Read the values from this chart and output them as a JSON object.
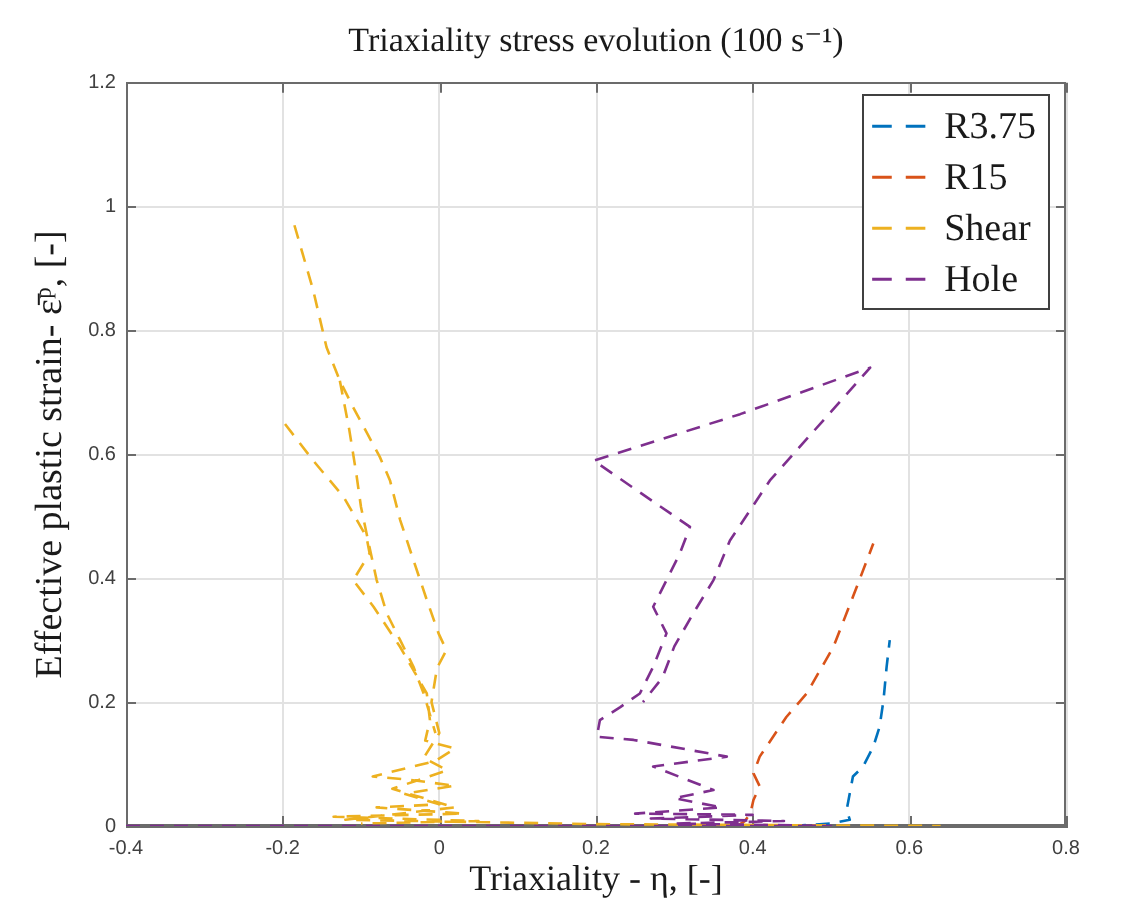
{
  "chart_data": {
    "type": "line",
    "title": "Triaxiality stress evolution (100 s⁻¹)",
    "xlabel": "Triaxiality - η, [-]",
    "ylabel": "Effective plastic strain- ε̄ᵖ, [-]",
    "xlim": [
      -0.4,
      0.8
    ],
    "ylim": [
      0,
      1.2
    ],
    "xticks": [
      -0.4,
      -0.2,
      0,
      0.2,
      0.4,
      0.6,
      0.8
    ],
    "yticks": [
      0,
      0.2,
      0.4,
      0.6,
      0.8,
      1,
      1.2
    ],
    "grid": true,
    "legend": "top right",
    "line_style": "dashed",
    "series": [
      {
        "name": "R3.75",
        "color": "#0072bd",
        "x": [
          0.45,
          0.5,
          0.524,
          0.52,
          0.524,
          0.528,
          0.541,
          0.554,
          0.562,
          0.567,
          0.571,
          0.575
        ],
        "values": [
          0,
          0.004,
          0.01,
          0.026,
          0.053,
          0.08,
          0.096,
          0.128,
          0.16,
          0.203,
          0.257,
          0.3
        ]
      },
      {
        "name": "R15",
        "color": "#d95319",
        "x": [
          0.38,
          0.39,
          0.397,
          0.401,
          0.409,
          0.401,
          0.409,
          0.443,
          0.469,
          0.503,
          0.528,
          0.554
        ],
        "values": [
          0,
          0.008,
          0.02,
          0.042,
          0.064,
          0.085,
          0.112,
          0.176,
          0.214,
          0.289,
          0.37,
          0.456
        ]
      },
      {
        "name": "Shear",
        "color": "#edb120",
        "x": [
          -0.197,
          -0.161,
          -0.122,
          -0.093,
          -0.089,
          -0.11,
          -0.084,
          -0.05,
          -0.016,
          -0.012,
          -0.018,
          0.02,
          -0.005,
          -0.085,
          -0.04,
          0.02,
          -0.045,
          0,
          -0.08,
          0.03,
          -0.135,
          0.05,
          -0.1,
          null,
          -0.185,
          -0.161,
          -0.144,
          -0.127,
          -0.11,
          -0.076,
          -0.063,
          -0.05,
          -0.033,
          -0.016,
          -0.001,
          0.009,
          -0.003,
          -0.01,
          0,
          -0.02,
          0.01,
          -0.06,
          0.02,
          -0.12,
          0.2,
          0.64,
          null,
          -0.127,
          -0.115,
          -0.106,
          -0.1,
          -0.091,
          -0.08,
          -0.067,
          -0.05,
          -0.033,
          -0.02,
          -0.012,
          -0.005
        ],
        "values": [
          0.649,
          0.59,
          0.531,
          0.467,
          0.44,
          0.397,
          0.354,
          0.289,
          0.214,
          0.171,
          0.138,
          0.125,
          0.105,
          0.08,
          0.075,
          0.065,
          0.052,
          0.035,
          0.03,
          0.02,
          0.015,
          0.008,
          0.004,
          null,
          0.97,
          0.865,
          0.773,
          0.719,
          0.676,
          0.596,
          0.558,
          0.494,
          0.429,
          0.365,
          0.311,
          0.284,
          0.255,
          0.2,
          0.15,
          0.11,
          0.09,
          0.06,
          0.03,
          0.01,
          0.003,
          0,
          null,
          0.719,
          0.64,
          0.569,
          0.515,
          0.461,
          0.397,
          0.343,
          0.3,
          0.257,
          0.214,
          0.18,
          0.15
        ]
      },
      {
        "name": "Hole",
        "color": "#7e2f8e",
        "x": [
          -0.4,
          0.5,
          0.3,
          0.44,
          0.27,
          0.4,
          0.25,
          0.36,
          0.3,
          0.35,
          0.273,
          0.367,
          0.248,
          0.201,
          0.205,
          0.231,
          0.256,
          0.273,
          0.29,
          0.273,
          0.29,
          0.307,
          0.32,
          0.197,
          0.384,
          0.55,
          0.422,
          0.371,
          0.35,
          0.324,
          0.3,
          0.285,
          0.26
        ],
        "values": [
          0,
          0,
          0.004,
          0.008,
          0.012,
          0.018,
          0.02,
          0.03,
          0.045,
          0.058,
          0.096,
          0.112,
          0.139,
          0.144,
          0.171,
          0.192,
          0.214,
          0.257,
          0.311,
          0.354,
          0.397,
          0.44,
          0.483,
          0.59,
          0.665,
          0.74,
          0.558,
          0.461,
          0.397,
          0.343,
          0.29,
          0.24,
          0.2
        ]
      }
    ]
  }
}
